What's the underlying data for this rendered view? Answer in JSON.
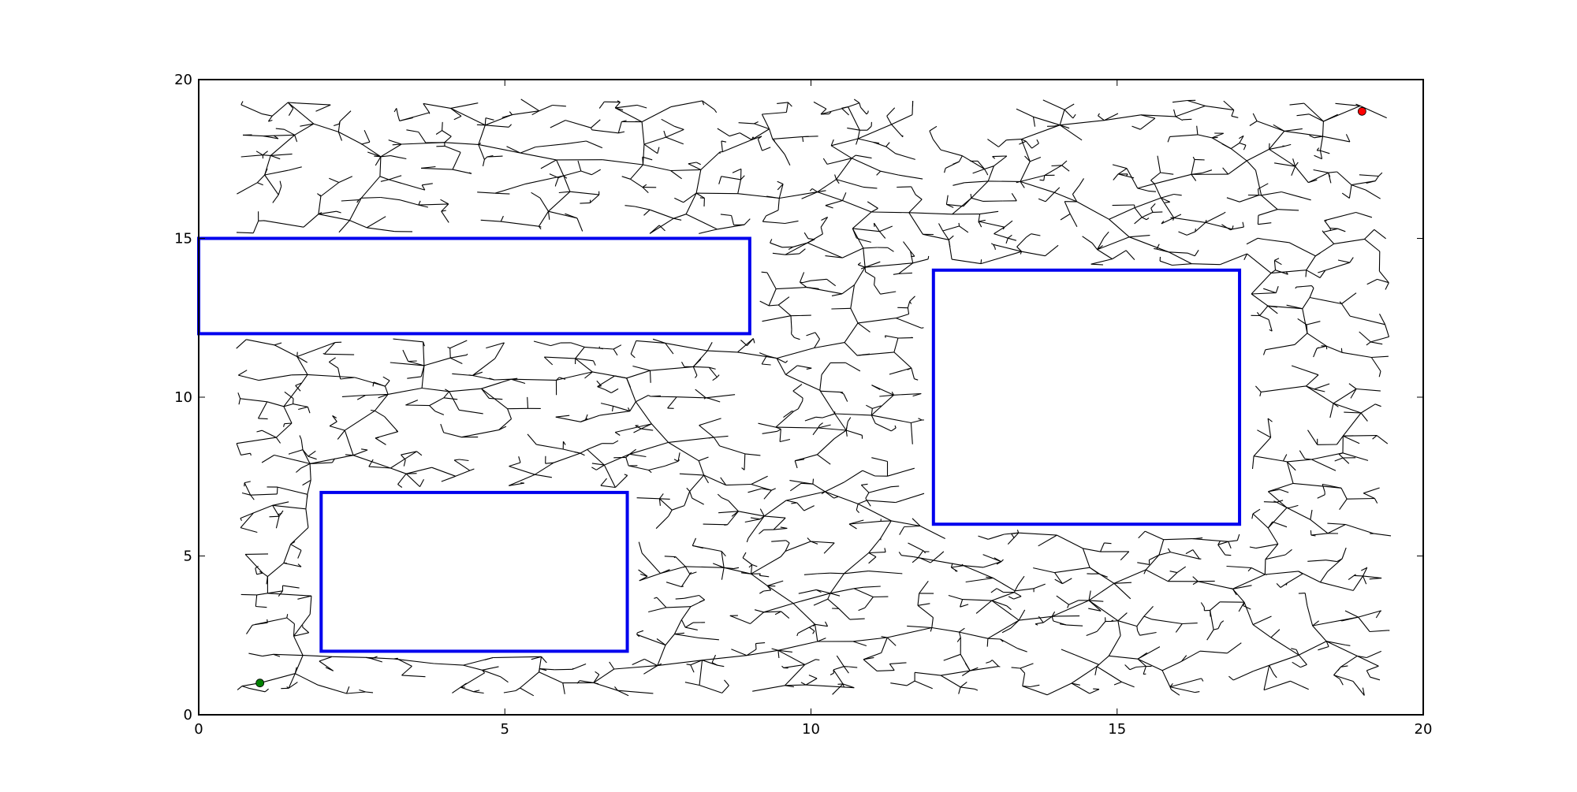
{
  "chart_data": {
    "type": "scatter",
    "title": "",
    "xlabel": "",
    "ylabel": "",
    "xlim": [
      0,
      20
    ],
    "ylim": [
      0,
      20
    ],
    "grid": false,
    "x_ticks": [
      "0",
      "5",
      "10",
      "15",
      "20"
    ],
    "y_ticks": [
      "0",
      "5",
      "10",
      "15",
      "20"
    ],
    "obstacles": [
      {
        "x0": 0,
        "y0": 12,
        "x1": 9,
        "y1": 15
      },
      {
        "x0": 12,
        "y0": 6,
        "x1": 17,
        "y1": 14
      },
      {
        "x0": 2,
        "y0": 2,
        "x1": 7,
        "y1": 7
      }
    ],
    "start": {
      "x": 1,
      "y": 1
    },
    "goal": {
      "x": 19,
      "y": 19
    },
    "colors": {
      "obstacle": "#0000ee",
      "tree": "#000000",
      "start": "#008000",
      "goal": "#ff0000"
    }
  }
}
